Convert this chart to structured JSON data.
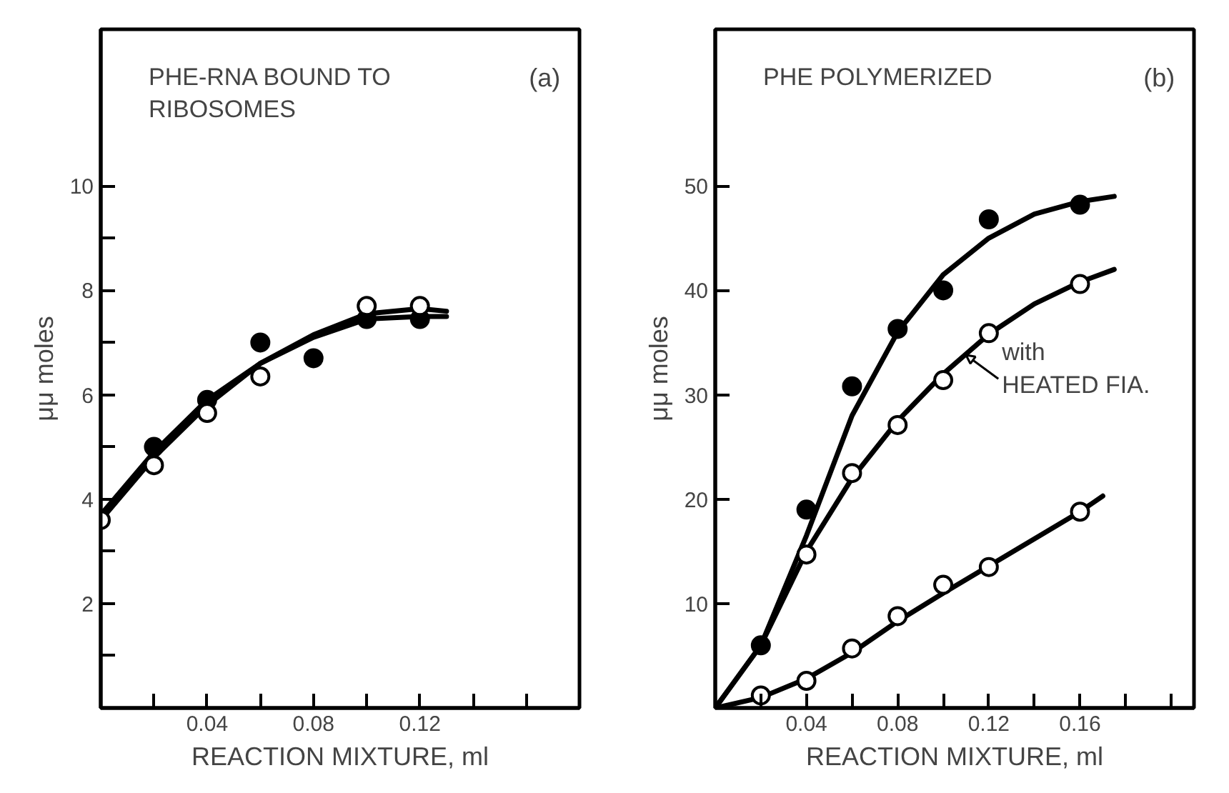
{
  "chart_data": [
    {
      "type": "scatter",
      "title": "PHE-RNA BOUND TO\nRIBOSOMES",
      "xlabel": "REACTION MIXTURE, ml",
      "ylabel": "μμ moles",
      "annotations": [
        "(a)"
      ],
      "xlim": [
        0,
        0.18
      ],
      "ylim": [
        0,
        13
      ],
      "xticks": [
        {
          "value": 0.02,
          "label": null
        },
        0.04,
        {
          "value": 0.06,
          "label": null
        },
        0.08,
        {
          "value": 0.1,
          "label": null
        },
        0.12,
        {
          "value": 0.14,
          "label": null
        },
        {
          "value": 0.16,
          "label": null
        }
      ],
      "yticks": [
        {
          "value": 1,
          "label": null
        },
        2,
        {
          "value": 3,
          "label": null
        },
        4,
        {
          "value": 5,
          "label": null
        },
        6,
        {
          "value": 7,
          "label": null
        },
        8,
        {
          "value": 9,
          "label": null
        },
        10
      ],
      "grid": false,
      "marker": "circle",
      "series": [
        {
          "type": "line",
          "marker": "none",
          "color": "#000000",
          "x": [
            0,
            0.02,
            0.04,
            0.06,
            0.08,
            0.1,
            0.12,
            0.13
          ],
          "values": [
            3.7,
            4.9,
            5.9,
            6.6,
            7.1,
            7.45,
            7.5,
            7.5
          ]
        },
        {
          "type": "line",
          "marker": "none",
          "color": "#000000",
          "x": [
            0,
            0.02,
            0.04,
            0.06,
            0.08,
            0.1,
            0.12,
            0.13
          ],
          "values": [
            3.6,
            4.8,
            5.8,
            6.6,
            7.15,
            7.55,
            7.65,
            7.6
          ]
        },
        {
          "color": "#000000",
          "x": [
            0.02,
            0.04,
            0.06,
            0.08,
            0.1,
            0.12
          ],
          "values": [
            5.0,
            5.9,
            7.0,
            6.7,
            7.45,
            7.45
          ]
        },
        {
          "color": "#ffffff",
          "x": [
            0,
            0.02,
            0.04,
            0.06,
            0.1,
            0.12
          ],
          "values": [
            3.6,
            4.65,
            5.65,
            6.35,
            7.7,
            7.7
          ]
        }
      ]
    },
    {
      "type": "scatter",
      "title": "PHE POLYMERIZED",
      "xlabel": "REACTION MIXTURE, ml",
      "ylabel": "μμ moles",
      "annotations": [
        "(b)",
        {
          "text": "with\nHEATED FIA.",
          "x": 0.11,
          "y": 33.8
        }
      ],
      "xlim": [
        0,
        0.21
      ],
      "ylim": [
        0,
        65
      ],
      "xticks": [
        {
          "value": 0.02,
          "label": null
        },
        0.04,
        {
          "value": 0.06,
          "label": null
        },
        0.08,
        {
          "value": 0.1,
          "label": null
        },
        0.12,
        {
          "value": 0.14,
          "label": null
        },
        0.16,
        {
          "value": 0.18,
          "label": null
        },
        {
          "value": 0.2,
          "label": null
        }
      ],
      "yticks": [
        10,
        20,
        30,
        40,
        50
      ],
      "grid": false,
      "marker": "circle",
      "series": [
        {
          "type": "line",
          "marker": "none",
          "color": "#000000",
          "x": [
            0,
            0.02,
            0.04,
            0.06,
            0.08,
            0.1,
            0.12,
            0.14,
            0.16,
            0.175
          ],
          "values": [
            0,
            6,
            16.5,
            28,
            36,
            41.5,
            45,
            47.3,
            48.5,
            49
          ]
        },
        {
          "type": "line",
          "marker": "none",
          "color": "#000000",
          "x": [
            0,
            0.02,
            0.04,
            0.06,
            0.08,
            0.1,
            0.12,
            0.14,
            0.16,
            0.175
          ],
          "values": [
            0,
            6,
            15,
            22,
            27.5,
            32,
            35.8,
            38.7,
            40.8,
            42
          ]
        },
        {
          "type": "line",
          "marker": "none",
          "color": "#000000",
          "x": [
            0,
            0.02,
            0.04,
            0.06,
            0.08,
            0.1,
            0.12,
            0.14,
            0.16,
            0.17
          ],
          "values": [
            0,
            1,
            2.8,
            5.3,
            8.3,
            11,
            13.6,
            16.2,
            18.8,
            20.3
          ]
        },
        {
          "color": "#000000",
          "x": [
            0.02,
            0.04,
            0.06,
            0.08,
            0.1,
            0.12,
            0.16
          ],
          "values": [
            6,
            19,
            30.8,
            36.3,
            40,
            46.8,
            48.2
          ]
        },
        {
          "color": "#ffffff",
          "x": [
            0.04,
            0.06,
            0.08,
            0.1,
            0.12,
            0.16
          ],
          "values": [
            14.7,
            22.5,
            27.1,
            31.4,
            35.9,
            40.6
          ]
        },
        {
          "color": "#ffffff",
          "x": [
            0.02,
            0.04,
            0.06,
            0.08,
            0.1,
            0.12,
            0.16
          ],
          "values": [
            1.2,
            2.6,
            5.7,
            8.8,
            11.8,
            13.5,
            18.8
          ]
        }
      ]
    }
  ]
}
